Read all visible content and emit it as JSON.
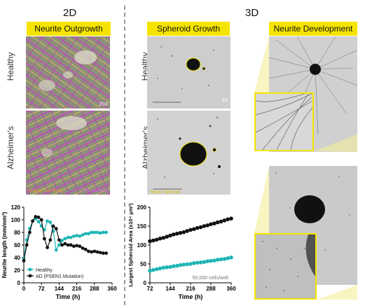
{
  "headings": {
    "left": "2D",
    "right": "3D"
  },
  "labels": {
    "neurite_outgrowth": "Neurite Outgrowth",
    "spheroid_growth": "Spheroid Growth",
    "neurite_development": "Neurite Development",
    "healthy_2d": "Healthy",
    "alzheimers_2d": "Alzheimer's",
    "healthy_3d": "Healthy",
    "alzheimers_3d": "Alzheimer's"
  },
  "image_text": {
    "mag_2d": "20X",
    "mag_3d": "4X",
    "orange_cell_body": "Orange: Cell Body",
    "pink_neurites": "Pink: Neurites",
    "yellow_spheroid": "Yellow: Spheroid"
  },
  "colors": {
    "healthy": "#1fb5b5",
    "ad": "#111111",
    "highlight": "#f5e400",
    "pink": "#c040c0",
    "orange": "#d9a030"
  },
  "chart_data": [
    {
      "type": "line",
      "ylabel": "Neurite length (mm/mm²)",
      "xlabel": "Time (h)",
      "xlim": [
        0,
        360
      ],
      "ylim": [
        0,
        120
      ],
      "xticks": [
        0,
        72,
        144,
        216,
        288,
        360
      ],
      "yticks": [
        0,
        20,
        40,
        60,
        80,
        100,
        120
      ],
      "legend_position": "bottom-left",
      "series": [
        {
          "name": "Healthy",
          "color": "#1fb5b5",
          "x": [
            0,
            12,
            24,
            36,
            48,
            60,
            72,
            84,
            96,
            108,
            120,
            132,
            144,
            156,
            168,
            180,
            192,
            204,
            216,
            228,
            240,
            252,
            264,
            276,
            288,
            300,
            312,
            324,
            336
          ],
          "y": [
            38,
            68,
            86,
            98,
            102,
            97,
            90,
            84,
            98,
            96,
            82,
            52,
            60,
            67,
            70,
            72,
            72,
            74,
            75,
            74,
            76,
            78,
            78,
            80,
            80,
            80,
            79,
            80,
            80
          ]
        },
        {
          "name": "AD (PSEN1 Mutation)",
          "color": "#111111",
          "x": [
            0,
            12,
            24,
            36,
            48,
            60,
            72,
            84,
            96,
            108,
            120,
            132,
            144,
            156,
            168,
            180,
            192,
            204,
            216,
            228,
            240,
            252,
            264,
            276,
            288,
            300,
            312,
            324,
            336
          ],
          "y": [
            35,
            60,
            80,
            98,
            105,
            104,
            100,
            70,
            56,
            68,
            90,
            86,
            68,
            60,
            62,
            60,
            60,
            58,
            59,
            58,
            55,
            53,
            50,
            49,
            50,
            49,
            48,
            47,
            47
          ]
        }
      ]
    },
    {
      "type": "scatter",
      "ylabel": "Largest Spheroid Area (x10⁴ μm²)",
      "xlabel": "Time (h)",
      "xlim": [
        72,
        360
      ],
      "ylim": [
        0,
        200
      ],
      "xticks": [
        72,
        144,
        216,
        288,
        360
      ],
      "yticks": [
        0,
        50,
        100,
        150,
        200
      ],
      "annotation": "50,000 cells/well",
      "series": [
        {
          "name": "AD",
          "color": "#111111",
          "x": [
            72,
            84,
            96,
            108,
            120,
            132,
            144,
            156,
            168,
            180,
            192,
            204,
            216,
            228,
            240,
            252,
            264,
            276,
            288,
            300,
            312,
            324,
            336,
            348,
            360
          ],
          "y": [
            110,
            112,
            114,
            117,
            119,
            122,
            125,
            128,
            130,
            132,
            134,
            137,
            140,
            142,
            145,
            147,
            150,
            152,
            155,
            157,
            160,
            162,
            165,
            168,
            170
          ]
        },
        {
          "name": "Healthy",
          "color": "#1fb5b5",
          "x": [
            72,
            84,
            96,
            108,
            120,
            132,
            144,
            156,
            168,
            180,
            192,
            204,
            216,
            228,
            240,
            252,
            264,
            276,
            288,
            300,
            312,
            324,
            336,
            348,
            360
          ],
          "y": [
            32,
            34,
            36,
            38,
            40,
            41,
            42,
            44,
            45,
            47,
            48,
            49,
            50,
            52,
            53,
            54,
            55,
            57,
            58,
            59,
            61,
            62,
            63,
            65,
            67
          ]
        }
      ]
    }
  ]
}
